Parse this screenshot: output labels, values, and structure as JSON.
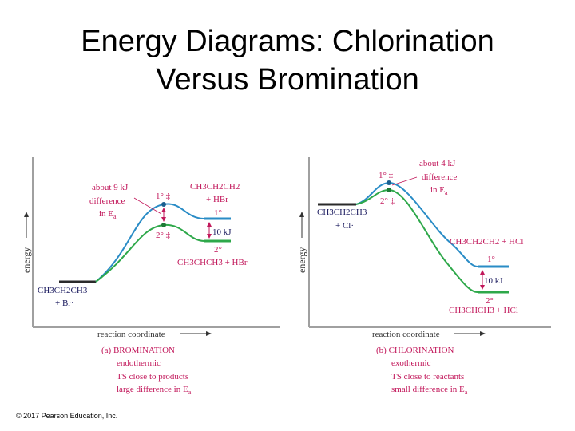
{
  "slide": {
    "title_line1": "Energy Diagrams: Chlorination",
    "title_line2": "Versus Bromination",
    "copyright": "© 2017 Pearson Education, Inc."
  },
  "colors": {
    "primary_curve": "#2a8cc6",
    "secondary_curve": "#2ea84a",
    "label_pink": "#c2185b",
    "label_navy": "#1a1a5e",
    "axis_gray": "#a0a0a0"
  },
  "bromination": {
    "annotation_line1": "about 9 kJ",
    "annotation_line2": "difference",
    "annotation_line3": "in E",
    "annotation_sub": "a",
    "ts_primary": "1° ‡",
    "ts_secondary": "2° ‡",
    "product_primary_line1": "CH3CH2CH2",
    "product_primary_line2": "+ HBr",
    "product_primary_label": "1°",
    "energy_gap": "10 kJ",
    "product_secondary_label": "2°",
    "product_secondary_line1": "CH3CHCH3 + HBr",
    "reactant_line1": "CH3CH2CH3",
    "reactant_line2": "+ Br·",
    "y_label": "energy",
    "x_label": "reaction coordinate",
    "caption_title": "(a) BROMINATION",
    "caption_line1": "endothermic",
    "caption_line2": "TS close to products",
    "caption_line3": "large difference in E",
    "caption_sub": "a"
  },
  "chlorination": {
    "annotation_line1": "about 4 kJ",
    "annotation_line2": "difference",
    "annotation_line3": "in E",
    "annotation_sub": "a",
    "ts_primary": "1° ‡",
    "ts_secondary": "2° ‡",
    "reactant_line1": "CH3CH2CH3",
    "reactant_line2": "+ Cl·",
    "product_primary_line1": "CH3CH2CH2 + HCl",
    "product_primary_label": "1°",
    "energy_gap": "10 kJ",
    "product_secondary_label": "2°",
    "product_secondary_line1": "CH3CHCH3 + HCl",
    "y_label": "energy",
    "x_label": "reaction coordinate",
    "caption_title": "(b) CHLORINATION",
    "caption_line1": "exothermic",
    "caption_line2": "TS close to reactants",
    "caption_line3": "small difference in E",
    "caption_sub": "a"
  }
}
